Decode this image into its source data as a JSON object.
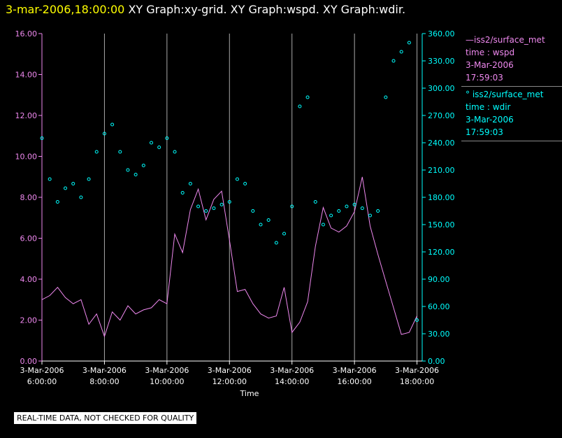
{
  "header": {
    "date": "3-mar-2006,18:00:00",
    "titles": "XY Graph:xy-grid.  XY Graph:wspd.  XY Graph:wdir."
  },
  "colors": {
    "wspd": "#ee88ee",
    "wdir": "#00ffff",
    "grid": "#aaaaaa",
    "axis_text": "#ffffff"
  },
  "legend": {
    "wspd": {
      "line1": "—iss2/surface_met",
      "line2": "time : wspd",
      "line3": "3-Mar-2006",
      "line4": "17:59:03"
    },
    "wdir": {
      "line1": "° iss2/surface_met",
      "line2": "time : wdir",
      "line3": "3-Mar-2006",
      "line4": "17:59:03"
    }
  },
  "disclaimer": "REAL-TIME DATA, NOT CHECKED FOR QUALITY",
  "chart_data": {
    "type": "line",
    "xlabel": "Time",
    "xlim": [
      "06:00",
      "18:10"
    ],
    "x_ticks": [
      {
        "date": "3-Mar-2006",
        "time": "6:00:00"
      },
      {
        "date": "3-Mar-2006",
        "time": "8:00:00"
      },
      {
        "date": "3-Mar-2006",
        "time": "10:00:00"
      },
      {
        "date": "3-Mar-2006",
        "time": "12:00:00"
      },
      {
        "date": "3-Mar-2006",
        "time": "14:00:00"
      },
      {
        "date": "3-Mar-2006",
        "time": "16:00:00"
      },
      {
        "date": "3-Mar-2006",
        "time": "18:00:00"
      }
    ],
    "y_left": {
      "ylim": [
        0,
        16
      ],
      "ticks": [
        "0.00",
        "2.00",
        "4.00",
        "6.00",
        "8.00",
        "10.00",
        "12.00",
        "14.00",
        "16.00"
      ]
    },
    "y_right": {
      "ylim": [
        0,
        360
      ],
      "ticks": [
        "0.00",
        "30.00",
        "60.00",
        "90.00",
        "120.00",
        "150.00",
        "180.00",
        "210.00",
        "240.00",
        "270.00",
        "300.00",
        "330.00",
        "360.00"
      ]
    },
    "grid": "vertical",
    "series": [
      {
        "name": "iss2/surface_met time : wspd",
        "style": "line",
        "axis": "left",
        "x": [
          "06:00",
          "06:15",
          "06:30",
          "06:45",
          "07:00",
          "07:15",
          "07:30",
          "07:45",
          "08:00",
          "08:15",
          "08:30",
          "08:45",
          "09:00",
          "09:15",
          "09:30",
          "09:45",
          "10:00",
          "10:15",
          "10:30",
          "10:45",
          "11:00",
          "11:15",
          "11:30",
          "11:45",
          "12:00",
          "12:15",
          "12:30",
          "12:45",
          "13:00",
          "13:15",
          "13:30",
          "13:45",
          "14:00",
          "14:15",
          "14:30",
          "14:45",
          "15:00",
          "15:15",
          "15:30",
          "15:45",
          "16:00",
          "16:15",
          "16:30",
          "16:45",
          "17:00",
          "17:15",
          "17:30",
          "17:45",
          "18:00"
        ],
        "values": [
          3.0,
          3.2,
          3.6,
          3.1,
          2.8,
          3.0,
          1.8,
          2.3,
          1.2,
          2.4,
          2.0,
          2.7,
          2.3,
          2.5,
          2.6,
          3.0,
          2.8,
          6.2,
          5.3,
          7.4,
          8.4,
          6.9,
          7.9,
          8.3,
          5.9,
          3.4,
          3.5,
          2.8,
          2.3,
          2.1,
          2.2,
          3.6,
          1.4,
          1.9,
          2.9,
          5.6,
          7.5,
          6.5,
          6.3,
          6.6,
          7.3,
          9.0,
          6.6,
          5.2,
          3.9,
          2.6,
          1.3,
          1.4,
          2.2
        ]
      },
      {
        "name": "iss2/surface_met time : wdir",
        "style": "scatter",
        "axis": "right",
        "x": [
          "06:00",
          "06:15",
          "06:30",
          "06:45",
          "07:00",
          "07:15",
          "07:30",
          "07:45",
          "08:00",
          "08:15",
          "08:30",
          "08:45",
          "09:00",
          "09:15",
          "09:30",
          "09:45",
          "10:00",
          "10:15",
          "10:30",
          "10:45",
          "11:00",
          "11:15",
          "11:30",
          "11:45",
          "12:00",
          "12:15",
          "12:30",
          "12:45",
          "13:00",
          "13:15",
          "13:30",
          "13:45",
          "14:00",
          "14:15",
          "14:30",
          "14:45",
          "15:00",
          "15:15",
          "15:30",
          "15:45",
          "16:00",
          "16:15",
          "16:30",
          "16:45",
          "17:00",
          "17:15",
          "17:30",
          "17:45",
          "18:00"
        ],
        "values": [
          245,
          200,
          175,
          190,
          195,
          180,
          200,
          230,
          250,
          260,
          230,
          210,
          205,
          215,
          240,
          235,
          245,
          230,
          185,
          195,
          170,
          165,
          168,
          172,
          175,
          200,
          195,
          165,
          150,
          155,
          130,
          140,
          170,
          280,
          290,
          175,
          150,
          160,
          165,
          170,
          172,
          168,
          160,
          165,
          290,
          330,
          340,
          350,
          45
        ]
      }
    ]
  }
}
